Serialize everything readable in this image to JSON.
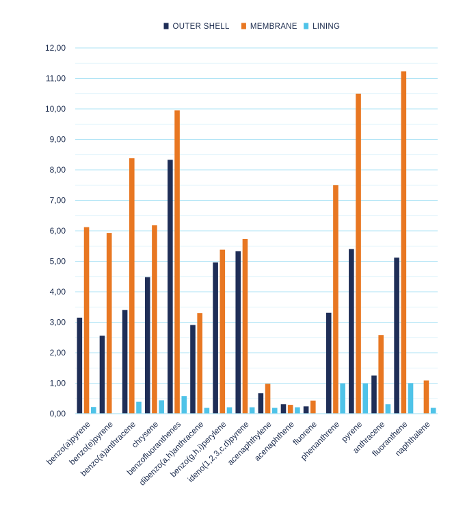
{
  "chart_data": {
    "type": "bar",
    "title": "",
    "xlabel": "",
    "ylabel": "",
    "ylim": [
      0,
      12
    ],
    "y_ticks": [
      "0,00",
      "1,00",
      "2,00",
      "3,00",
      "4,00",
      "5,00",
      "6,00",
      "7,00",
      "8,00",
      "9,00",
      "10,00",
      "11,00",
      "12,00"
    ],
    "grid": "horizontal",
    "legend_position": "top-center",
    "categories": [
      "benzo(a)pyrene",
      "benzo(e)pyrene",
      "benzo(a)anthracene",
      "chrysene",
      "benzofluoranthenes",
      "dibenzo(a,h)anthracene",
      "benzo(g,h,i)perylene",
      "ideno(1,2,3,c,d)pyrene",
      "acenaphthylene",
      "acenaphthene",
      "fluorene",
      "phenanthrene",
      "pyrene",
      "anthracene",
      "fluoranthene",
      "naphthalene"
    ],
    "series": [
      {
        "name": "OUTER SHELL",
        "color": "#1f2e57",
        "values": [
          3.15,
          2.56,
          3.4,
          4.48,
          8.33,
          2.91,
          4.96,
          5.33,
          0.67,
          0.31,
          0.24,
          3.31,
          5.4,
          1.25,
          5.12,
          null
        ]
      },
      {
        "name": "MEMBRANE",
        "color": "#e87722",
        "values": [
          6.12,
          5.93,
          8.38,
          6.18,
          9.95,
          3.3,
          5.38,
          5.73,
          0.98,
          0.29,
          0.43,
          7.5,
          10.5,
          2.58,
          11.23,
          1.09
        ]
      },
      {
        "name": "LINING",
        "color": "#4fc3e8",
        "values": [
          0.22,
          null,
          0.39,
          0.44,
          0.58,
          0.19,
          0.21,
          0.21,
          0.19,
          0.21,
          null,
          0.99,
          0.99,
          0.31,
          1.0,
          0.19
        ]
      }
    ]
  }
}
